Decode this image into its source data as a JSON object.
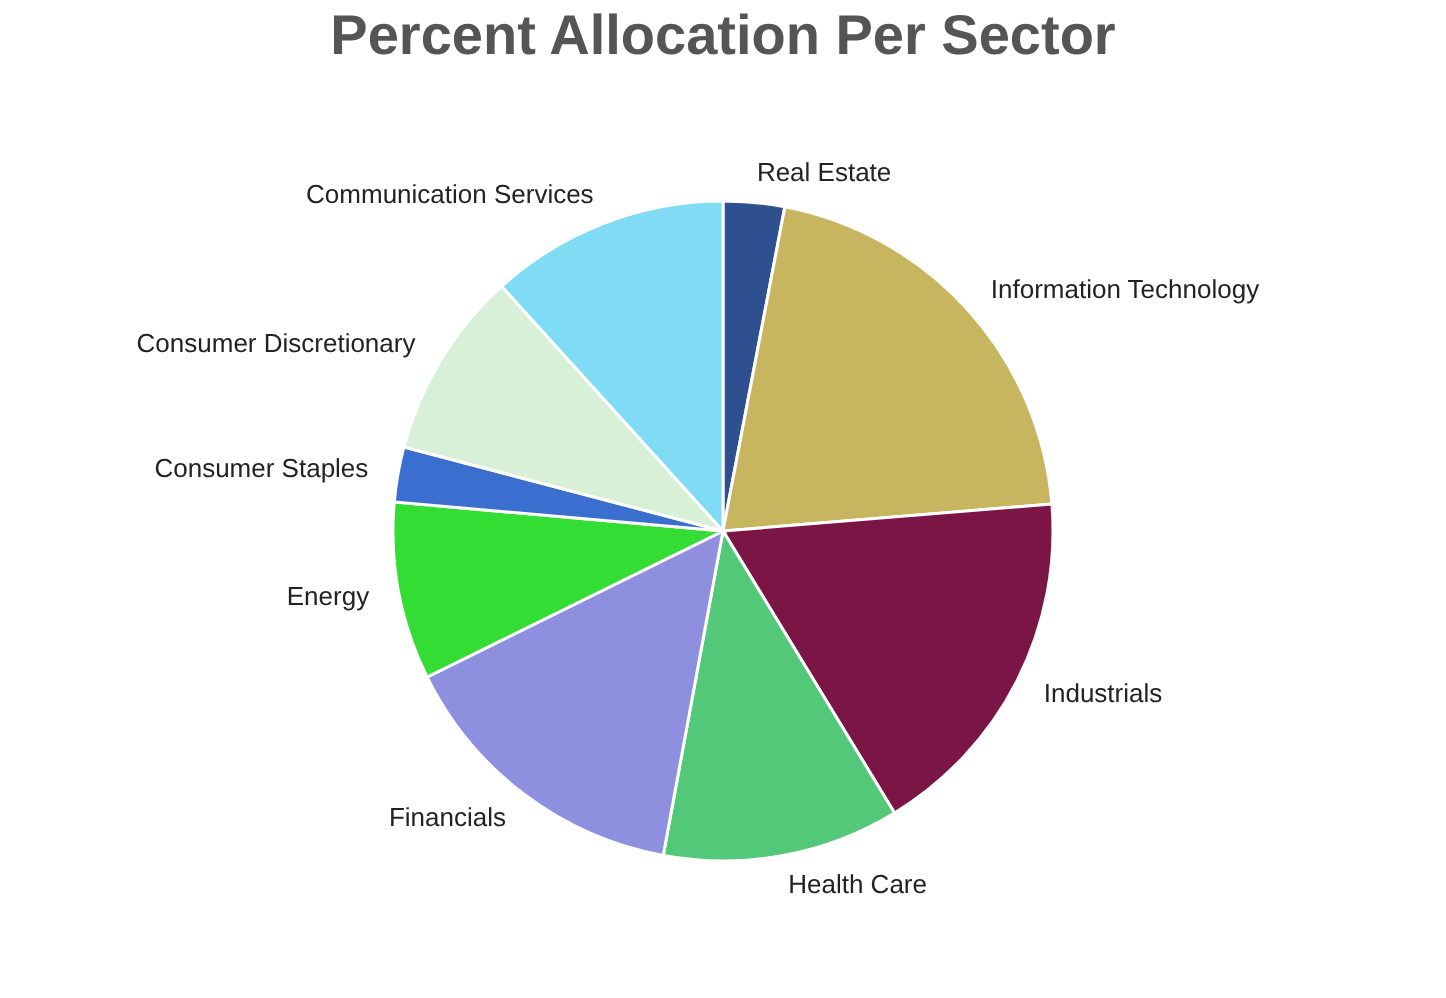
{
  "chart_data": {
    "type": "pie",
    "title": "Percent Allocation Per Sector",
    "categories": [
      "Real Estate",
      "Information Technology",
      "Industrials",
      "Health Care",
      "Financials",
      "Energy",
      "Consumer Staples",
      "Consumer Discretionary",
      "Communication Services"
    ],
    "values": [
      3.0,
      20.7,
      17.6,
      11.6,
      14.8,
      8.7,
      2.7,
      9.2,
      11.7
    ],
    "colors": [
      "#2e5090",
      "#c8b560",
      "#7a1545",
      "#52c878",
      "#8f8fe0",
      "#33dd33",
      "#3a6fd0",
      "#d8f0d8",
      "#80dcf5"
    ],
    "legend": false
  }
}
